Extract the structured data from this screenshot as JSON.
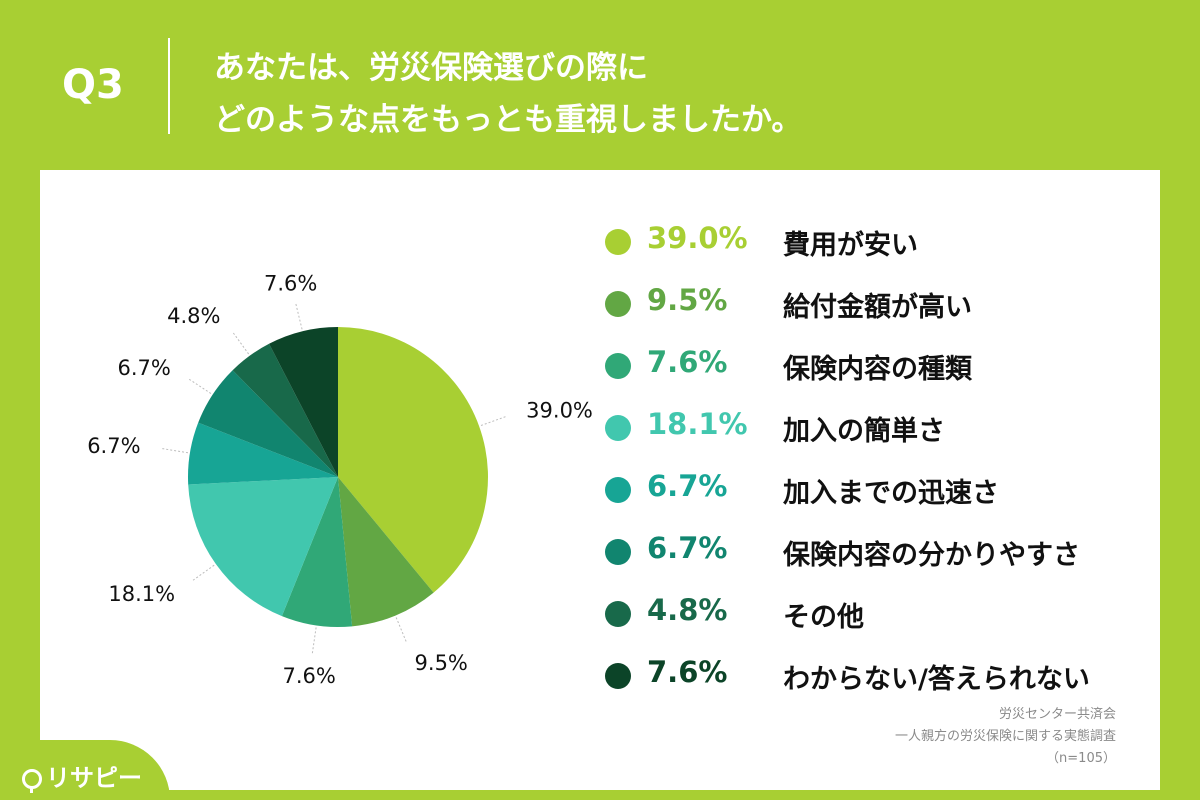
{
  "header": {
    "q_label": "Q3",
    "question_line1": "あなたは、労災保険選びの際に",
    "question_line2": "どのような点をもっとも重視しましたか。"
  },
  "chart_data": {
    "type": "pie",
    "title": "",
    "start": "top",
    "direction": "clockwise",
    "slices": [
      {
        "label": "費用が安い",
        "value": 39.0,
        "display": "39.0%",
        "color": "#a8cf33"
      },
      {
        "label": "給付金額が高い",
        "value": 9.5,
        "display": "9.5%",
        "color": "#62a744"
      },
      {
        "label": "保険内容の種類",
        "value": 7.6,
        "display": "7.6%",
        "color": "#30a877"
      },
      {
        "label": "加入の簡単さ",
        "value": 18.1,
        "display": "18.1%",
        "color": "#41c7ae"
      },
      {
        "label": "加入までの迅速さ",
        "value": 6.7,
        "display": "6.7%",
        "color": "#17a595"
      },
      {
        "label": "保険内容の分かりやすさ",
        "value": 6.7,
        "display": "6.7%",
        "color": "#11856f"
      },
      {
        "label": "その他",
        "value": 4.8,
        "display": "4.8%",
        "color": "#18694a"
      },
      {
        "label": "わからない/答えられない",
        "value": 7.6,
        "display": "7.6%",
        "color": "#0c4428"
      }
    ]
  },
  "source": {
    "line1": "労災センター共済会",
    "line2": "一人親方の労災保険に関する実態調査",
    "line3": "（n=105）"
  },
  "logo": {
    "text": "リサピー"
  }
}
